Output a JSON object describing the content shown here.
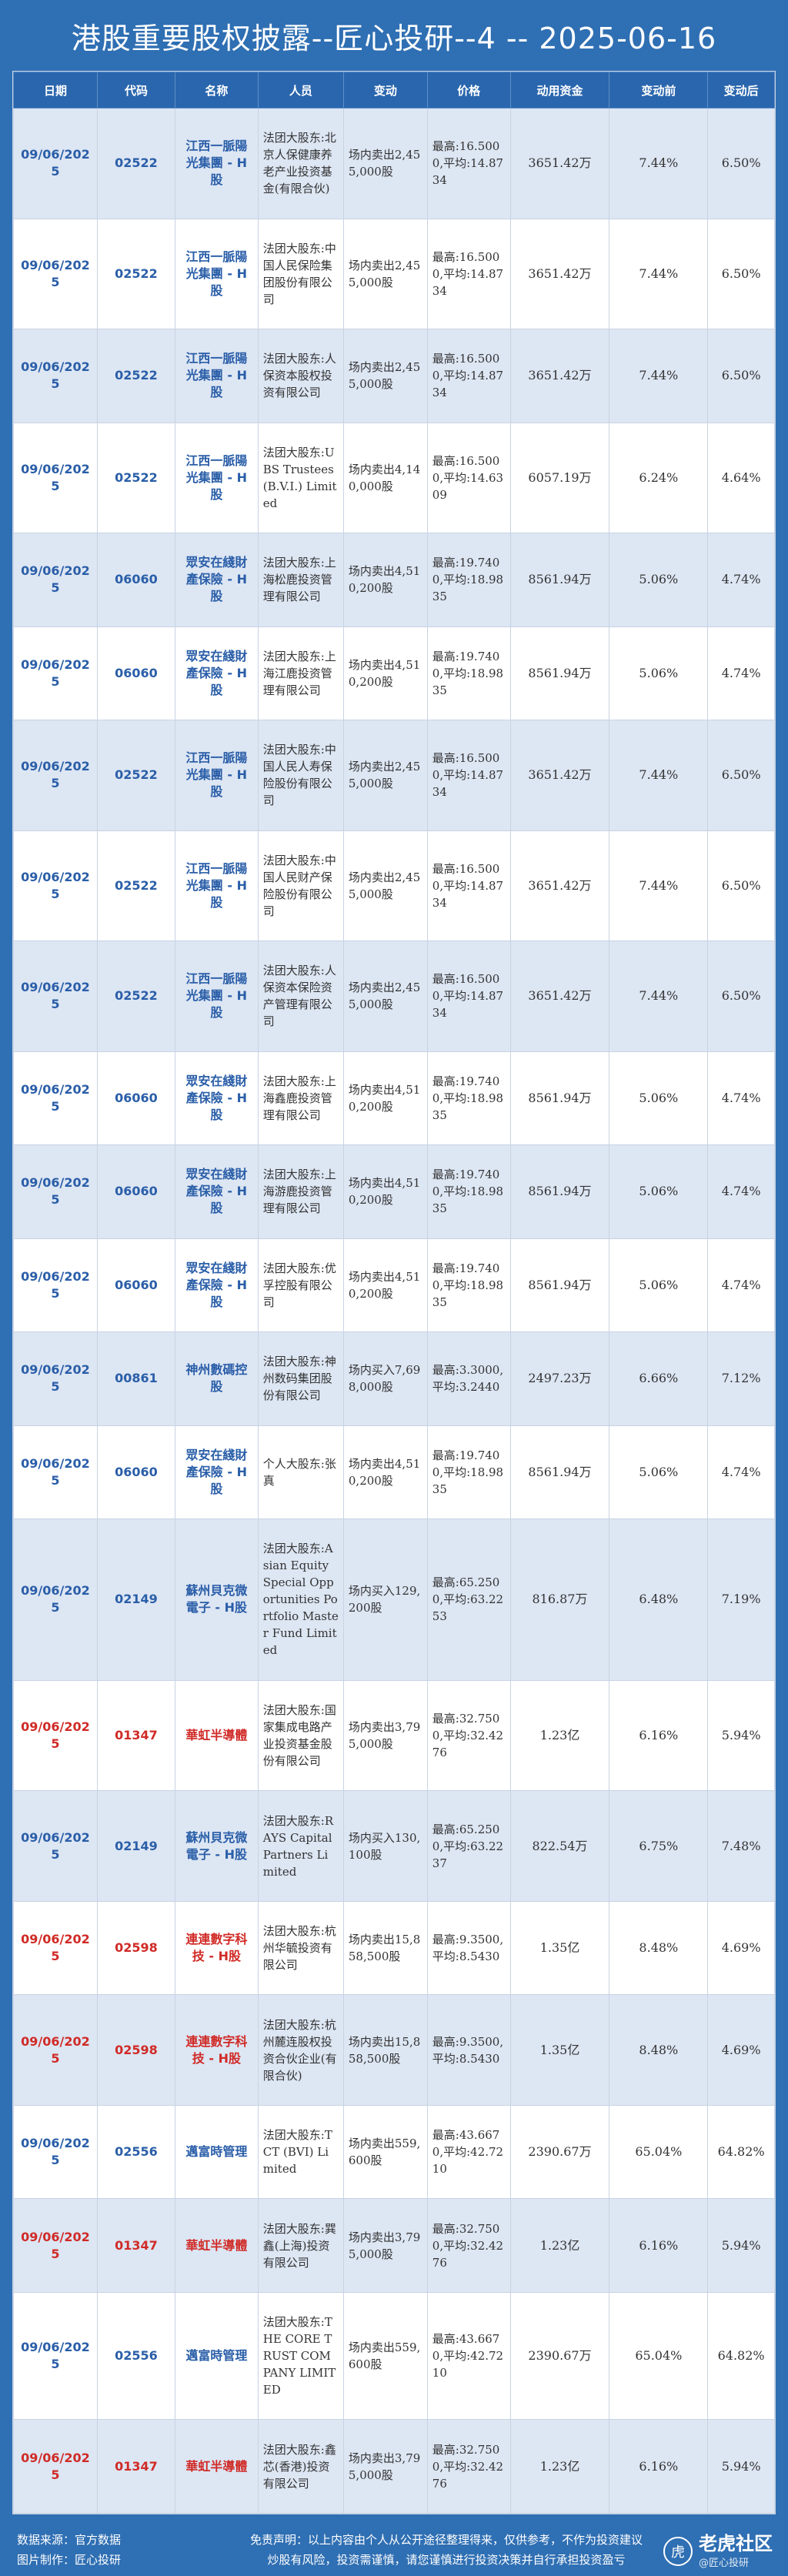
{
  "title": "港股重要股权披露--匠心投研--4 -- 2025-06-16",
  "headers": [
    "日期",
    "代码",
    "名称",
    "人员",
    "变动",
    "价格",
    "动用资金",
    "变动前",
    "变动后"
  ],
  "rows": [
    {
      "date": "09/06/2025",
      "code": "02522",
      "name": "江西一脈陽光集團 - H股",
      "person": "法团大股东:北京人保健康养老产业投资基金(有限合伙)",
      "change": "场内卖出2,455,000股",
      "price": "最高:16.5000,平均:14.8734",
      "capital": "3651.42万",
      "before": "7.44%",
      "after": "6.50%",
      "red": false
    },
    {
      "date": "09/06/2025",
      "code": "02522",
      "name": "江西一脈陽光集團 - H股",
      "person": "法团大股东:中国人民保险集团股份有限公司",
      "change": "场内卖出2,455,000股",
      "price": "最高:16.5000,平均:14.8734",
      "capital": "3651.42万",
      "before": "7.44%",
      "after": "6.50%",
      "red": false
    },
    {
      "date": "09/06/2025",
      "code": "02522",
      "name": "江西一脈陽光集團 - H股",
      "person": "法团大股东:人保资本股权投资有限公司",
      "change": "场内卖出2,455,000股",
      "price": "最高:16.5000,平均:14.8734",
      "capital": "3651.42万",
      "before": "7.44%",
      "after": "6.50%",
      "red": false
    },
    {
      "date": "09/06/2025",
      "code": "02522",
      "name": "江西一脈陽光集團 - H股",
      "person": "法团大股东:UBS Trustees (B.V.I.) Limited",
      "change": "场内卖出4,140,000股",
      "price": "最高:16.5000,平均:14.6309",
      "capital": "6057.19万",
      "before": "6.24%",
      "after": "4.64%",
      "red": false
    },
    {
      "date": "09/06/2025",
      "code": "06060",
      "name": "眾安在綫財產保險 - H股",
      "person": "法团大股东:上海松鹿投资管理有限公司",
      "change": "场内卖出4,510,200股",
      "price": "最高:19.7400,平均:18.9835",
      "capital": "8561.94万",
      "before": "5.06%",
      "after": "4.74%",
      "red": false
    },
    {
      "date": "09/06/2025",
      "code": "06060",
      "name": "眾安在綫財產保險 - H股",
      "person": "法团大股东:上海江鹿投资管理有限公司",
      "change": "场内卖出4,510,200股",
      "price": "最高:19.7400,平均:18.9835",
      "capital": "8561.94万",
      "before": "5.06%",
      "after": "4.74%",
      "red": false
    },
    {
      "date": "09/06/2025",
      "code": "02522",
      "name": "江西一脈陽光集團 - H股",
      "person": "法团大股东:中国人民人寿保险股份有限公司",
      "change": "场内卖出2,455,000股",
      "price": "最高:16.5000,平均:14.8734",
      "capital": "3651.42万",
      "before": "7.44%",
      "after": "6.50%",
      "red": false
    },
    {
      "date": "09/06/2025",
      "code": "02522",
      "name": "江西一脈陽光集團 - H股",
      "person": "法团大股东:中国人民财产保险股份有限公司",
      "change": "场内卖出2,455,000股",
      "price": "最高:16.5000,平均:14.8734",
      "capital": "3651.42万",
      "before": "7.44%",
      "after": "6.50%",
      "red": false
    },
    {
      "date": "09/06/2025",
      "code": "02522",
      "name": "江西一脈陽光集團 - H股",
      "person": "法团大股东:人保资本保险资产管理有限公司",
      "change": "场内卖出2,455,000股",
      "price": "最高:16.5000,平均:14.8734",
      "capital": "3651.42万",
      "before": "7.44%",
      "after": "6.50%",
      "red": false
    },
    {
      "date": "09/06/2025",
      "code": "06060",
      "name": "眾安在綫財產保險 - H股",
      "person": "法团大股东:上海鑫鹿投资管理有限公司",
      "change": "场内卖出4,510,200股",
      "price": "最高:19.7400,平均:18.9835",
      "capital": "8561.94万",
      "before": "5.06%",
      "after": "4.74%",
      "red": false
    },
    {
      "date": "09/06/2025",
      "code": "06060",
      "name": "眾安在綫財產保險 - H股",
      "person": "法团大股东:上海游鹿投资管理有限公司",
      "change": "场内卖出4,510,200股",
      "price": "最高:19.7400,平均:18.9835",
      "capital": "8561.94万",
      "before": "5.06%",
      "after": "4.74%",
      "red": false
    },
    {
      "date": "09/06/2025",
      "code": "06060",
      "name": "眾安在綫財產保險 - H股",
      "person": "法团大股东:优孚控股有限公司",
      "change": "场内卖出4,510,200股",
      "price": "最高:19.7400,平均:18.9835",
      "capital": "8561.94万",
      "before": "5.06%",
      "after": "4.74%",
      "red": false
    },
    {
      "date": "09/06/2025",
      "code": "00861",
      "name": "神州數碼控股",
      "person": "法团大股东:神州数码集团股份有限公司",
      "change": "场内买入7,698,000股",
      "price": "最高:3.3000,平均:3.2440",
      "capital": "2497.23万",
      "before": "6.66%",
      "after": "7.12%",
      "red": false
    },
    {
      "date": "09/06/2025",
      "code": "06060",
      "name": "眾安在綫財產保險 - H股",
      "person": "个人大股东:张真",
      "change": "场内卖出4,510,200股",
      "price": "最高:19.7400,平均:18.9835",
      "capital": "8561.94万",
      "before": "5.06%",
      "after": "4.74%",
      "red": false
    },
    {
      "date": "09/06/2025",
      "code": "02149",
      "name": "蘇州貝克微電子 - H股",
      "person": "法团大股东:Asian Equity Special Opportunities Portfolio Master Fund Limited",
      "change": "场内买入129,200股",
      "price": "最高:65.2500,平均:63.2253",
      "capital": "816.87万",
      "before": "6.48%",
      "after": "7.19%",
      "red": false
    },
    {
      "date": "09/06/2025",
      "code": "01347",
      "name": "華虹半導體",
      "person": "法团大股东:国家集成电路产业投资基金股份有限公司",
      "change": "场内卖出3,795,000股",
      "price": "最高:32.7500,平均:32.4276",
      "capital": "1.23亿",
      "before": "6.16%",
      "after": "5.94%",
      "red": true
    },
    {
      "date": "09/06/2025",
      "code": "02149",
      "name": "蘇州貝克微電子 - H股",
      "person": "法团大股东:RAYS Capital Partners Limited",
      "change": "场内买入130,100股",
      "price": "最高:65.2500,平均:63.2237",
      "capital": "822.54万",
      "before": "6.75%",
      "after": "7.48%",
      "red": false
    },
    {
      "date": "09/06/2025",
      "code": "02598",
      "name": "連連數字科技 - H股",
      "person": "法团大股东:杭州华毓投资有限公司",
      "change": "场内卖出15,858,500股",
      "price": "最高:9.3500,平均:8.5430",
      "capital": "1.35亿",
      "before": "8.48%",
      "after": "4.69%",
      "red": true
    },
    {
      "date": "09/06/2025",
      "code": "02598",
      "name": "連連數字科技 - H股",
      "person": "法团大股东:杭州麓连股权投资合伙企业(有限合伙)",
      "change": "场内卖出15,858,500股",
      "price": "最高:9.3500,平均:8.5430",
      "capital": "1.35亿",
      "before": "8.48%",
      "after": "4.69%",
      "red": true
    },
    {
      "date": "09/06/2025",
      "code": "02556",
      "name": "邁富時管理",
      "person": "法团大股东:TCT (BVI) Limited",
      "change": "场内卖出559,600股",
      "price": "最高:43.6670,平均:42.7210",
      "capital": "2390.67万",
      "before": "65.04%",
      "after": "64.82%",
      "red": false
    },
    {
      "date": "09/06/2025",
      "code": "01347",
      "name": "華虹半導體",
      "person": "法团大股东:巽鑫(上海)投资有限公司",
      "change": "场内卖出3,795,000股",
      "price": "最高:32.7500,平均:32.4276",
      "capital": "1.23亿",
      "before": "6.16%",
      "after": "5.94%",
      "red": true
    },
    {
      "date": "09/06/2025",
      "code": "02556",
      "name": "邁富時管理",
      "person": "法团大股东:THE CORE TRUST COMPANY LIMITED",
      "change": "场内卖出559,600股",
      "price": "最高:43.6670,平均:42.7210",
      "capital": "2390.67万",
      "before": "65.04%",
      "after": "64.82%",
      "red": false
    },
    {
      "date": "09/06/2025",
      "code": "01347",
      "name": "華虹半導體",
      "person": "法团大股东:鑫芯(香港)投资有限公司",
      "change": "场内卖出3,795,000股",
      "price": "最高:32.7500,平均:32.4276",
      "capital": "1.23亿",
      "before": "6.16%",
      "after": "5.94%",
      "red": true
    }
  ],
  "footer": {
    "source": "数据来源：官方数据",
    "maker": "图片制作：匠心投研",
    "disclaimer1": "免责声明：以上内容由个人从公开途径整理得来，仅供参考，不作为投资建议",
    "disclaimer2": "炒股有风险，投资需谨慎，请您谨慎进行投资决策并自行承担投资盈亏",
    "brand": "老虎社区",
    "brand_sub": "@匠心投研"
  }
}
